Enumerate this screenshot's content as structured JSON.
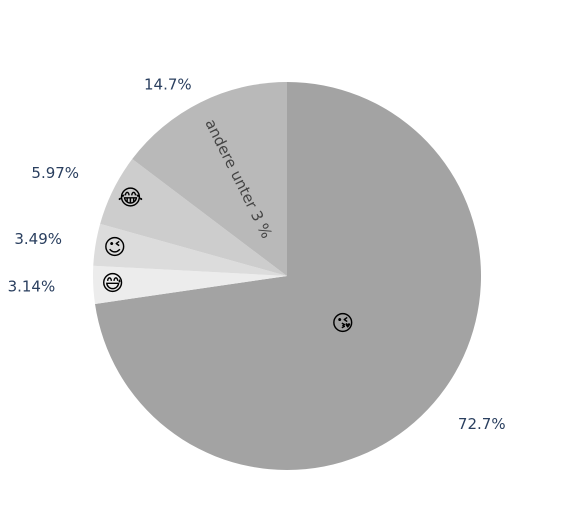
{
  "chart_data": {
    "type": "pie",
    "direction": "clockwise",
    "start": "top",
    "slices": [
      {
        "label": "😘",
        "value": 72.7,
        "text": "72.7%",
        "color": "#a3a3a3"
      },
      {
        "label": "😅",
        "value": 3.14,
        "text": "3.14%",
        "color": "#ececec"
      },
      {
        "label": "😉",
        "value": 3.49,
        "text": "3.49%",
        "color": "#dcdcdc"
      },
      {
        "label": "😂",
        "value": 5.97,
        "text": "5.97%",
        "color": "#cdcdcd"
      },
      {
        "label": "andere unter 3 %",
        "value": 14.7,
        "text": "14.7%",
        "color": "#b9b9b9"
      }
    ]
  }
}
